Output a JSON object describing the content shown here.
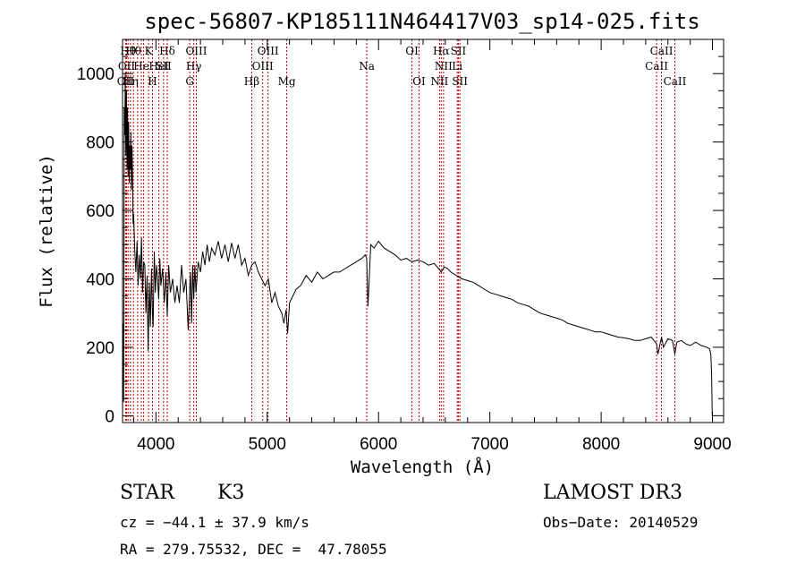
{
  "chart_data": {
    "type": "line",
    "title": "spec-56807-KP185111N464417V03_sp14-025.fits",
    "xlabel": "Wavelength (Å)",
    "ylabel": "Flux (relative)",
    "xlim": [
      3700,
      9100
    ],
    "ylim": [
      -20,
      1100
    ],
    "xticks": [
      4000,
      5000,
      6000,
      7000,
      8000,
      9000
    ],
    "yticks": [
      0,
      200,
      400,
      600,
      800,
      1000
    ],
    "series": [
      {
        "name": "flux",
        "x": [
          3700,
          3705,
          3710,
          3715,
          3720,
          3725,
          3730,
          3735,
          3740,
          3745,
          3750,
          3755,
          3760,
          3765,
          3770,
          3775,
          3780,
          3785,
          3790,
          3795,
          3800,
          3810,
          3820,
          3830,
          3840,
          3850,
          3860,
          3870,
          3880,
          3890,
          3900,
          3910,
          3920,
          3930,
          3940,
          3950,
          3960,
          3968,
          3975,
          3985,
          3995,
          4005,
          4015,
          4025,
          4035,
          4045,
          4060,
          4075,
          4090,
          4102,
          4115,
          4130,
          4150,
          4170,
          4190,
          4210,
          4230,
          4250,
          4270,
          4290,
          4310,
          4320,
          4330,
          4340,
          4350,
          4360,
          4380,
          4400,
          4420,
          4440,
          4460,
          4480,
          4500,
          4530,
          4560,
          4590,
          4620,
          4650,
          4680,
          4710,
          4740,
          4770,
          4800,
          4830,
          4861,
          4890,
          4920,
          4950,
          4980,
          5010,
          5040,
          5070,
          5100,
          5130,
          5150,
          5170,
          5183,
          5200,
          5230,
          5260,
          5300,
          5350,
          5400,
          5450,
          5500,
          5550,
          5600,
          5650,
          5700,
          5750,
          5800,
          5850,
          5880,
          5893,
          5905,
          5930,
          5960,
          6000,
          6050,
          6100,
          6150,
          6200,
          6250,
          6300,
          6350,
          6400,
          6450,
          6500,
          6540,
          6563,
          6590,
          6620,
          6650,
          6700,
          6750,
          6800,
          6850,
          6900,
          6950,
          7000,
          7050,
          7100,
          7150,
          7200,
          7250,
          7300,
          7350,
          7400,
          7450,
          7500,
          7550,
          7600,
          7650,
          7700,
          7750,
          7800,
          7850,
          7900,
          7950,
          8000,
          8050,
          8100,
          8150,
          8200,
          8250,
          8300,
          8350,
          8400,
          8450,
          8498,
          8510,
          8542,
          8560,
          8600,
          8640,
          8662,
          8680,
          8720,
          8760,
          8800,
          8850,
          8900,
          8950,
          8975,
          8985,
          8992,
          8998
        ],
        "y": [
          0,
          270,
          40,
          900,
          820,
          1000,
          760,
          950,
          720,
          900,
          700,
          860,
          680,
          790,
          720,
          830,
          660,
          790,
          700,
          560,
          590,
          480,
          420,
          510,
          380,
          470,
          400,
          520,
          360,
          450,
          440,
          300,
          410,
          190,
          390,
          260,
          430,
          300,
          260,
          480,
          360,
          440,
          400,
          340,
          460,
          380,
          430,
          330,
          420,
          290,
          440,
          360,
          400,
          330,
          380,
          330,
          440,
          360,
          400,
          250,
          420,
          270,
          440,
          340,
          440,
          360,
          450,
          420,
          480,
          440,
          500,
          450,
          490,
          470,
          510,
          460,
          500,
          450,
          505,
          460,
          500,
          440,
          460,
          410,
          440,
          450,
          420,
          400,
          380,
          400,
          330,
          360,
          320,
          300,
          270,
          310,
          240,
          330,
          350,
          370,
          380,
          410,
          390,
          420,
          400,
          410,
          420,
          420,
          430,
          440,
          450,
          460,
          470,
          460,
          320,
          500,
          490,
          510,
          490,
          480,
          470,
          455,
          460,
          450,
          455,
          450,
          440,
          445,
          430,
          420,
          435,
          430,
          420,
          410,
          400,
          395,
          390,
          380,
          370,
          360,
          355,
          350,
          345,
          340,
          330,
          325,
          320,
          310,
          300,
          295,
          290,
          285,
          280,
          270,
          265,
          260,
          255,
          250,
          245,
          245,
          240,
          235,
          230,
          228,
          225,
          220,
          220,
          225,
          230,
          210,
          180,
          230,
          200,
          225,
          220,
          180,
          215,
          220,
          210,
          205,
          215,
          205,
          200,
          195,
          180,
          120,
          0
        ]
      }
    ],
    "line_markers": [
      {
        "wl": 3727,
        "row": 2,
        "label": "OII"
      },
      {
        "wl": 3736,
        "row": 1,
        "label": "OII"
      },
      {
        "wl": 3750,
        "row": 0,
        "label": "Hθ"
      },
      {
        "wl": 3771,
        "row": 2,
        "label": "Hη"
      },
      {
        "wl": 3798,
        "row": 0,
        "label": "Hθ"
      },
      {
        "wl": 3835,
        "row": 2,
        "label": ""
      },
      {
        "wl": 3869,
        "row": 1,
        "label": "He"
      },
      {
        "wl": 3889,
        "row": 2,
        "label": ""
      },
      {
        "wl": 3934,
        "row": 0,
        "label": "K"
      },
      {
        "wl": 3969,
        "row": 2,
        "label": "H"
      },
      {
        "wl": 4026,
        "row": 1,
        "label": "HeI"
      },
      {
        "wl": 4069,
        "row": 1,
        "label": "SII"
      },
      {
        "wl": 4102,
        "row": 0,
        "label": "Hδ"
      },
      {
        "wl": 4304,
        "row": 2,
        "label": "G"
      },
      {
        "wl": 4340,
        "row": 1,
        "label": "Hγ"
      },
      {
        "wl": 4363,
        "row": 0,
        "label": "OIII"
      },
      {
        "wl": 4861,
        "row": 2,
        "label": "Hβ"
      },
      {
        "wl": 4959,
        "row": 1,
        "label": "OIII"
      },
      {
        "wl": 5007,
        "row": 0,
        "label": "OIII"
      },
      {
        "wl": 5175,
        "row": 2,
        "label": "Mg"
      },
      {
        "wl": 5894,
        "row": 1,
        "label": "Na"
      },
      {
        "wl": 6300,
        "row": 0,
        "label": "OI"
      },
      {
        "wl": 6364,
        "row": 2,
        "label": "OI"
      },
      {
        "wl": 6548,
        "row": 2,
        "label": "NII"
      },
      {
        "wl": 6563,
        "row": 0,
        "label": "Hα"
      },
      {
        "wl": 6584,
        "row": 1,
        "label": "NII"
      },
      {
        "wl": 6707,
        "row": 1,
        "label": "Li"
      },
      {
        "wl": 6717,
        "row": 0,
        "label": "SII"
      },
      {
        "wl": 6731,
        "row": 2,
        "label": "SII"
      },
      {
        "wl": 8498,
        "row": 1,
        "label": "CaII"
      },
      {
        "wl": 8542,
        "row": 0,
        "label": "CaII"
      },
      {
        "wl": 8662,
        "row": 2,
        "label": "CaII"
      }
    ]
  },
  "info": {
    "class_label": "STAR",
    "subclass": "K3",
    "survey": "LAMOST DR3",
    "cz": "cz = −44.1 ± 37.9 km/s",
    "obs_date": "Obs−Date: 20140529",
    "coords": "RA = 279.75532, DEC =  47.78055"
  },
  "colors": {
    "marker_line": "#d00000",
    "spectrum": "#000000",
    "frame": "#000000"
  }
}
